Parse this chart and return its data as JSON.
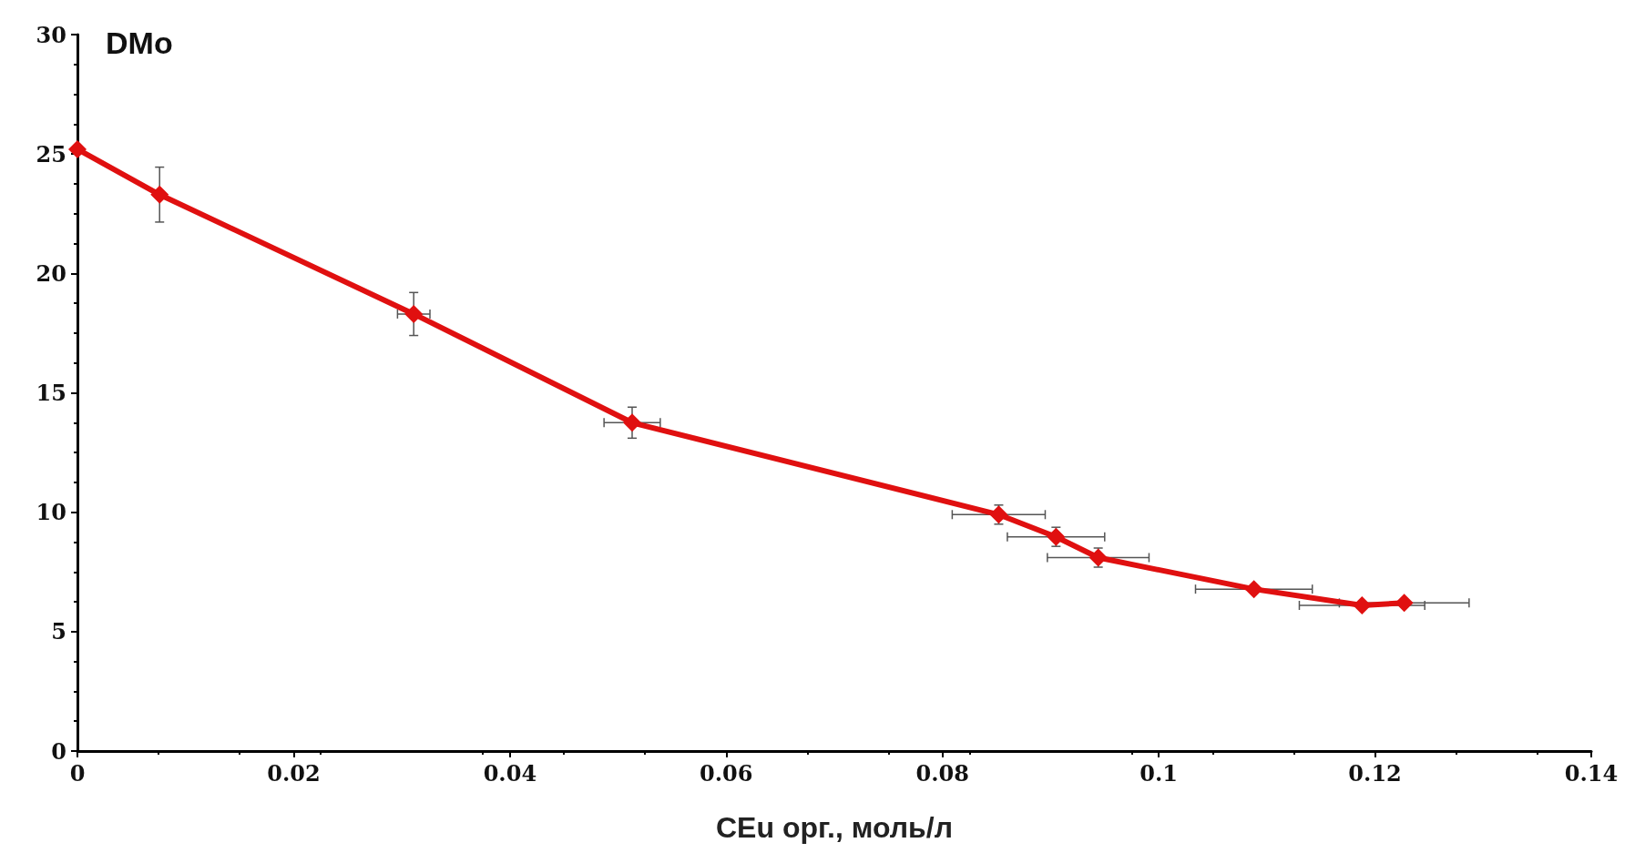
{
  "chart_data": {
    "type": "line",
    "ylabel": "DMo",
    "xlabel": "CEu орг., моль/л",
    "x": [
      0,
      0.0076,
      0.0311,
      0.0513,
      0.0852,
      0.0905,
      0.0944,
      0.1088,
      0.1188,
      0.1227
    ],
    "values": [
      25.2,
      23.3,
      18.3,
      13.75,
      9.9,
      8.97,
      8.1,
      6.78,
      6.1,
      6.2
    ],
    "errors": [
      null,
      1.15,
      0.9,
      0.65,
      0.4,
      0.4,
      0.4,
      null,
      null,
      null
    ],
    "xerrors": [
      null,
      null,
      0.0015,
      0.0026,
      0.0043,
      0.0045,
      0.0047,
      0.0054,
      0.0058,
      0.006
    ],
    "color": "#e01010",
    "marker": "diamond",
    "line_style": "solid",
    "grid": false,
    "xlim": [
      0,
      0.14
    ],
    "xticks": [
      0,
      0.02,
      0.04,
      0.06,
      0.08,
      0.1,
      0.12,
      0.14
    ],
    "ylim": [
      0,
      30
    ],
    "yticks": [
      0,
      5,
      10,
      15,
      20,
      25,
      30
    ]
  }
}
